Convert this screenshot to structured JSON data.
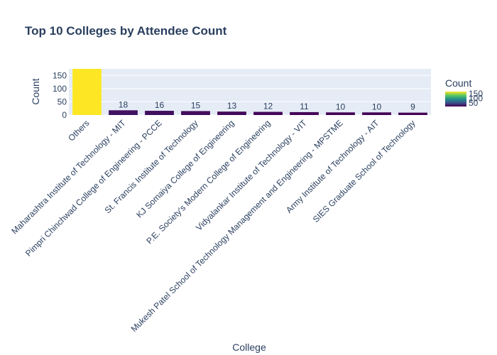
{
  "chart_data": {
    "type": "bar",
    "title": "Top 10 Colleges by Attendee Count",
    "xlabel": "College",
    "ylabel": "Count",
    "categories": [
      "Others",
      "Maharashtra Institute of Technology - MIT",
      "Pimpri Chinchwad College of Engineering - PCCE",
      "St. Francis Institute of Technology",
      "KJ Somaiya College of Engineering",
      "P.E. Society's Modern College of Engineering",
      "Vidyalankar Institute of Technology - VIT",
      "Mukesh Patel School of Technology Management and Engineering - MPSTME",
      "Army Institute of Technology - AIT",
      "SIES Graduate School of Technology"
    ],
    "values": [
      175,
      18,
      16,
      15,
      13,
      12,
      11,
      10,
      10,
      9
    ],
    "data_labels": [
      "",
      "18",
      "16",
      "15",
      "13",
      "12",
      "11",
      "10",
      "10",
      "9"
    ],
    "ylim": [
      0,
      175
    ],
    "yticks": [
      0,
      50,
      100,
      150
    ],
    "grid": true,
    "colorbar": {
      "title": "Count",
      "ticks": [
        50,
        100,
        150
      ],
      "colorscale": "viridis"
    }
  }
}
